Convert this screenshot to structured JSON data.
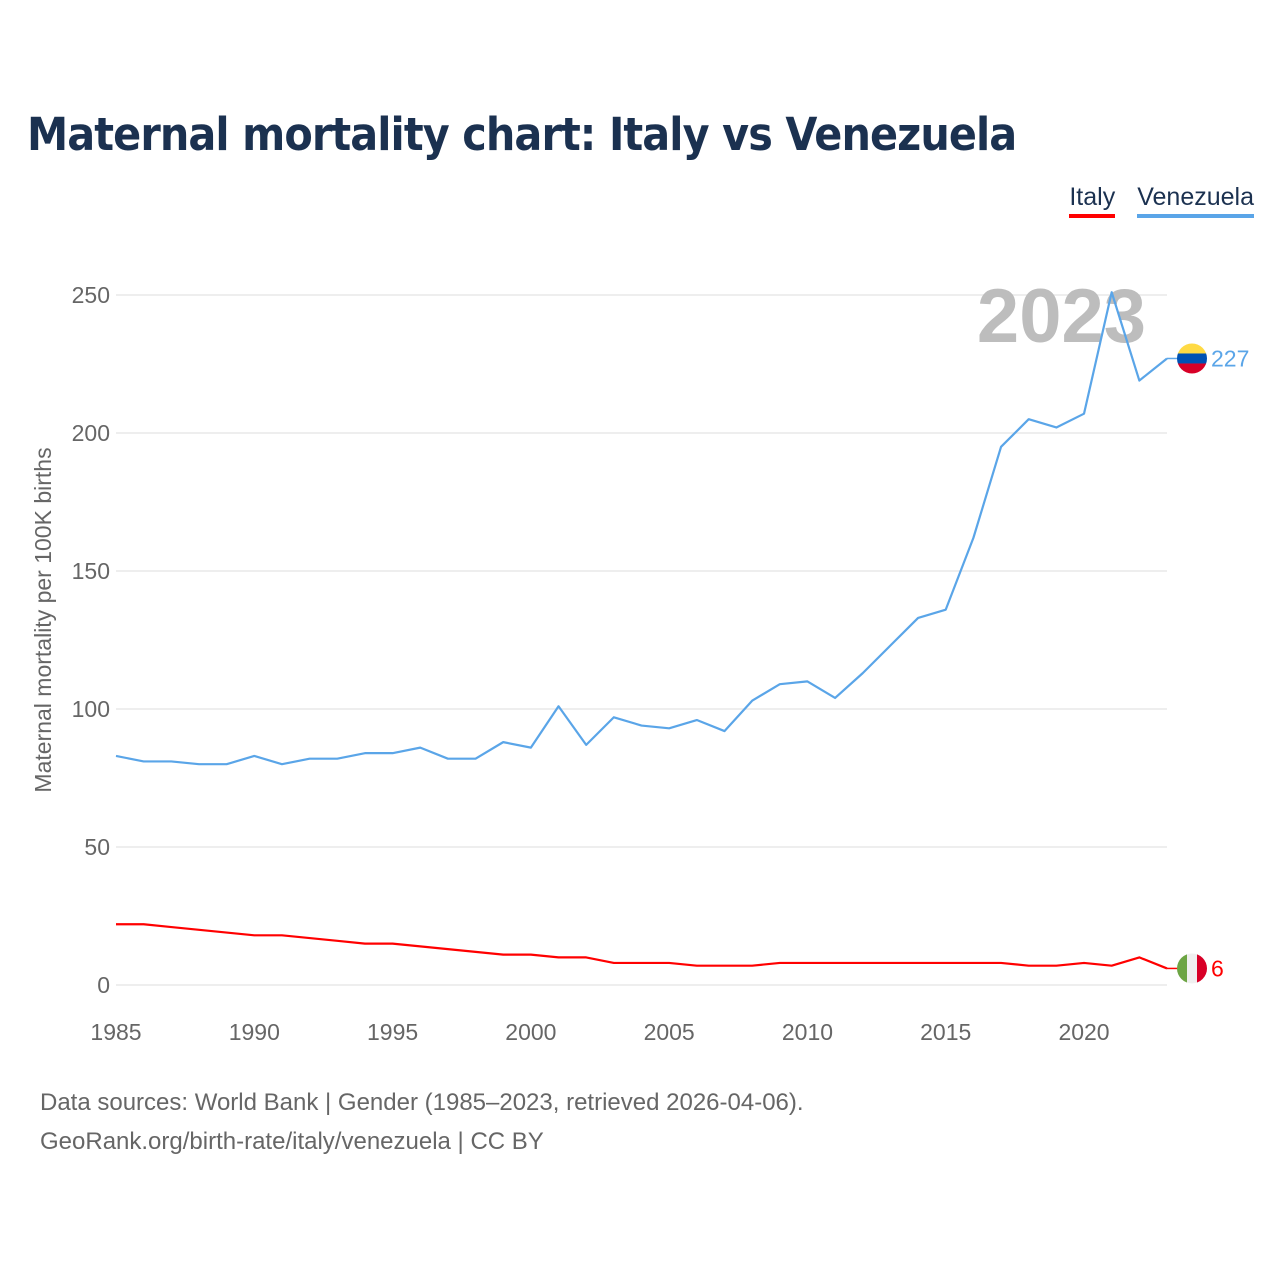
{
  "title": "Maternal mortality chart: Italy vs Venezuela",
  "legend": [
    {
      "label": "Italy",
      "color": "#ff0000"
    },
    {
      "label": "Venezuela",
      "color": "#5aa5e8"
    }
  ],
  "footer": {
    "line1": "Data sources: World Bank | Gender (1985–2023, retrieved 2026-04-06).",
    "line2": "GeoRank.org/birth-rate/italy/venezuela | CC BY"
  },
  "chart_data": {
    "type": "line",
    "title": "Maternal mortality chart: Italy vs Venezuela",
    "xlabel": "",
    "ylabel": "Maternal mortality per 100K births",
    "year_watermark": "2023",
    "xlim": [
      1985,
      2023
    ],
    "ylim": [
      0,
      260
    ],
    "xticks": [
      1985,
      1990,
      1995,
      2000,
      2005,
      2010,
      2015,
      2020
    ],
    "yticks": [
      0,
      50,
      100,
      150,
      200,
      250
    ],
    "grid": true,
    "legend_position": "top-right",
    "x": [
      1985,
      1986,
      1987,
      1988,
      1989,
      1990,
      1991,
      1992,
      1993,
      1994,
      1995,
      1996,
      1997,
      1998,
      1999,
      2000,
      2001,
      2002,
      2003,
      2004,
      2005,
      2006,
      2007,
      2008,
      2009,
      2010,
      2011,
      2012,
      2013,
      2014,
      2015,
      2016,
      2017,
      2018,
      2019,
      2020,
      2021,
      2022,
      2023
    ],
    "series": [
      {
        "name": "Italy",
        "color": "#ff0000",
        "end_label": "6",
        "flag": "italy",
        "values": [
          22,
          22,
          21,
          20,
          19,
          18,
          18,
          17,
          16,
          15,
          15,
          14,
          13,
          12,
          11,
          11,
          10,
          10,
          8,
          8,
          8,
          7,
          7,
          7,
          8,
          8,
          8,
          8,
          8,
          8,
          8,
          8,
          8,
          7,
          7,
          8,
          7,
          10,
          6
        ]
      },
      {
        "name": "Venezuela",
        "color": "#5aa5e8",
        "end_label": "227",
        "flag": "venezuela",
        "values": [
          83,
          81,
          81,
          80,
          80,
          83,
          80,
          82,
          82,
          84,
          84,
          86,
          82,
          82,
          88,
          86,
          101,
          87,
          97,
          94,
          93,
          96,
          92,
          103,
          109,
          110,
          104,
          113,
          123,
          133,
          136,
          162,
          195,
          205,
          202,
          207,
          251,
          219,
          227
        ]
      }
    ]
  }
}
